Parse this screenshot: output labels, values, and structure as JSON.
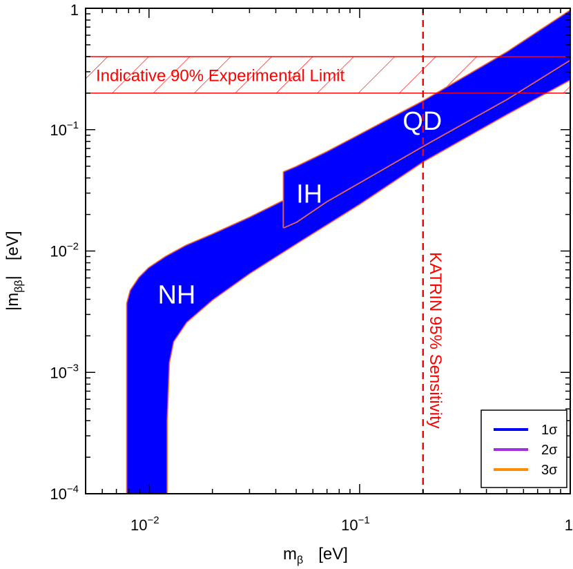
{
  "chart_data": {
    "type": "area",
    "x_scale": "log",
    "y_scale": "log",
    "xlim": [
      0.005,
      1
    ],
    "ylim": [
      0.0001,
      1
    ],
    "xlabel": "m",
    "xlabel_sub": "β",
    "xlabel_unit": "[eV]",
    "ylabel": "|m",
    "ylabel_sub": "ββ",
    "ylabel_tail": "|",
    "ylabel_unit": "[eV]",
    "x_ticks": [
      {
        "value": 0.01,
        "base": "10",
        "exp": "−2"
      },
      {
        "value": 0.1,
        "base": "10",
        "exp": "−1"
      },
      {
        "value": 1,
        "base": "1",
        "exp": ""
      }
    ],
    "y_ticks": [
      {
        "value": 0.0001,
        "base": "10",
        "exp": "−4"
      },
      {
        "value": 0.001,
        "base": "10",
        "exp": "−3"
      },
      {
        "value": 0.01,
        "base": "10",
        "exp": "−2"
      },
      {
        "value": 0.1,
        "base": "10",
        "exp": "−1"
      },
      {
        "value": 1,
        "base": "1",
        "exp": ""
      }
    ],
    "series": [
      {
        "name": "NH",
        "upper": [
          [
            0.0079,
            0.0001
          ],
          [
            0.0079,
            0.0037
          ],
          [
            0.0082,
            0.0047
          ],
          [
            0.009,
            0.006
          ],
          [
            0.01,
            0.0072
          ],
          [
            0.012,
            0.0089
          ],
          [
            0.015,
            0.011
          ],
          [
            0.02,
            0.0136
          ],
          [
            0.03,
            0.0187
          ],
          [
            0.05,
            0.029
          ],
          [
            0.1,
            0.054
          ],
          [
            0.2,
            0.105
          ],
          [
            0.5,
            0.26
          ],
          [
            1.0,
            0.6
          ]
        ],
        "lower": [
          [
            0.0121,
            0.0001
          ],
          [
            0.0121,
            0.0004
          ],
          [
            0.0124,
            0.0012
          ],
          [
            0.013,
            0.0018
          ],
          [
            0.015,
            0.0026
          ],
          [
            0.02,
            0.004
          ],
          [
            0.03,
            0.0066
          ],
          [
            0.05,
            0.0116
          ],
          [
            0.1,
            0.0246
          ],
          [
            0.2,
            0.055
          ],
          [
            0.5,
            0.135
          ],
          [
            1.0,
            0.26
          ]
        ]
      },
      {
        "name": "IH",
        "upper": [
          [
            0.0438,
            0.0445
          ],
          [
            0.05,
            0.049
          ],
          [
            0.07,
            0.065
          ],
          [
            0.1,
            0.09
          ],
          [
            0.2,
            0.17
          ],
          [
            0.5,
            0.43
          ],
          [
            1.0,
            0.95
          ]
        ],
        "lower": [
          [
            0.0438,
            0.0158
          ],
          [
            0.05,
            0.0175
          ],
          [
            0.07,
            0.026
          ],
          [
            0.1,
            0.037
          ],
          [
            0.2,
            0.074
          ],
          [
            0.5,
            0.18
          ],
          [
            1.0,
            0.38
          ]
        ]
      }
    ],
    "region_labels": [
      {
        "text": "NH",
        "x": 0.011,
        "y": 0.0037
      },
      {
        "text": "IH",
        "x": 0.05,
        "y": 0.025
      },
      {
        "text": "QD",
        "x": 0.16,
        "y": 0.1
      }
    ],
    "experimental_limit": {
      "label": "Indicative 90% Experimental Limit",
      "y_low": 0.2,
      "y_high": 0.4,
      "color": "#ff0000"
    },
    "katrin_sensitivity": {
      "label": "KATRIN 95% Sensitivity",
      "x": 0.2,
      "color": "#ff0000"
    },
    "legend": {
      "position": "bottom-right",
      "entries": [
        {
          "label": "1σ",
          "color": "#0000ff"
        },
        {
          "label": "2σ",
          "color": "#a030e0"
        },
        {
          "label": "3σ",
          "color": "#ff8c00"
        }
      ]
    },
    "colors": {
      "band_fill": "#0000ff",
      "band_edge_3sigma": "#ff8c00",
      "band_edge_2sigma": "#a030e0"
    }
  }
}
